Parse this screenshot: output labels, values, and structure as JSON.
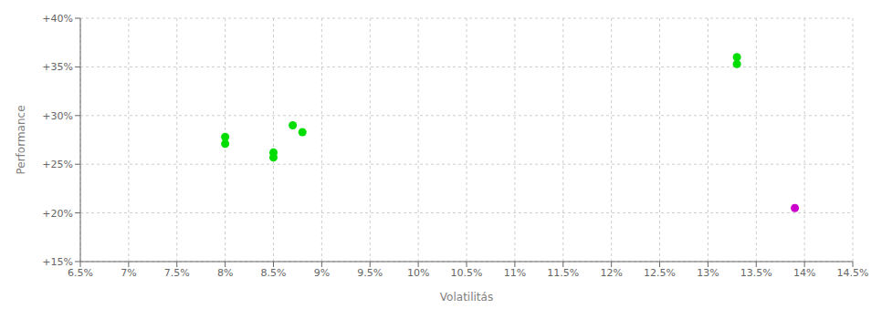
{
  "chart_data": {
    "type": "scatter",
    "xlabel": "Volatilitás",
    "ylabel": "Performance",
    "xlim": [
      0.065,
      0.145
    ],
    "ylim": [
      0.15,
      0.4
    ],
    "xticks": [
      {
        "value": 0.065,
        "label": "6.5%"
      },
      {
        "value": 0.07,
        "label": "7%"
      },
      {
        "value": 0.075,
        "label": "7.5%"
      },
      {
        "value": 0.08,
        "label": "8%"
      },
      {
        "value": 0.085,
        "label": "8.5%"
      },
      {
        "value": 0.09,
        "label": "9%"
      },
      {
        "value": 0.095,
        "label": "9.5%"
      },
      {
        "value": 0.1,
        "label": "10%"
      },
      {
        "value": 0.105,
        "label": "10.5%"
      },
      {
        "value": 0.11,
        "label": "11%"
      },
      {
        "value": 0.115,
        "label": "11.5%"
      },
      {
        "value": 0.12,
        "label": "12%"
      },
      {
        "value": 0.125,
        "label": "12.5%"
      },
      {
        "value": 0.13,
        "label": "13%"
      },
      {
        "value": 0.135,
        "label": "13.5%"
      },
      {
        "value": 0.14,
        "label": "14%"
      },
      {
        "value": 0.145,
        "label": "14.5%"
      }
    ],
    "yticks": [
      {
        "value": 0.15,
        "label": "+15%"
      },
      {
        "value": 0.2,
        "label": "+20%"
      },
      {
        "value": 0.25,
        "label": "+25%"
      },
      {
        "value": 0.3,
        "label": "+30%"
      },
      {
        "value": 0.35,
        "label": "+35%"
      },
      {
        "value": 0.4,
        "label": "+40%"
      }
    ],
    "grid": true,
    "series": [
      {
        "color": "#00dd00",
        "x": [
          0.08,
          0.08,
          0.085,
          0.085,
          0.087,
          0.088,
          0.133,
          0.133
        ],
        "values": [
          0.278,
          0.271,
          0.262,
          0.257,
          0.29,
          0.283,
          0.36,
          0.353
        ]
      },
      {
        "color": "#cc00cc",
        "x": [
          0.139
        ],
        "values": [
          0.205
        ]
      }
    ]
  }
}
